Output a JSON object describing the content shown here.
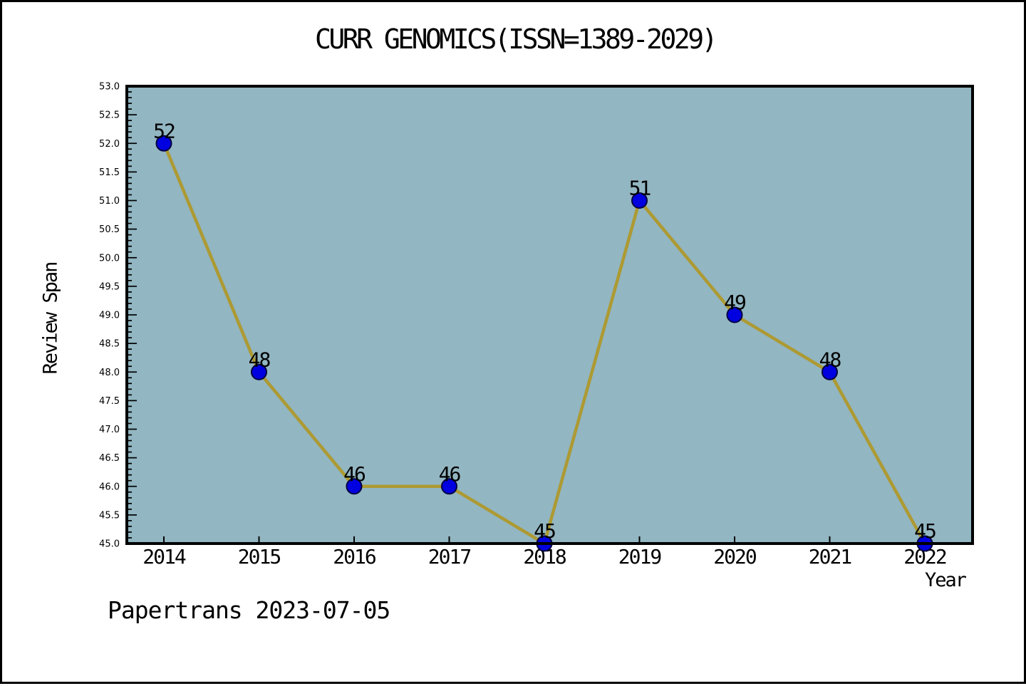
{
  "page": {
    "title": "CURR GENOMICS(ISSN=1389-2029)",
    "footer": "Papertrans 2023-07-05"
  },
  "chart_data": {
    "type": "line",
    "title": "CURR GENOMICS(ISSN=1389-2029)",
    "xlabel": "Year",
    "ylabel": "Review Span",
    "categories": [
      "2014",
      "2015",
      "2016",
      "2017",
      "2018",
      "2019",
      "2020",
      "2021",
      "2022"
    ],
    "values": [
      52,
      48,
      46,
      46,
      45,
      51,
      49,
      48,
      45
    ],
    "point_labels": [
      "52",
      "48",
      "46",
      "46",
      "45",
      "51",
      "49",
      "48",
      "45"
    ],
    "ylim": [
      45.0,
      53.0
    ],
    "y_major_step": 0.5,
    "y_minor_step": 0.1,
    "y_tick_labels": [
      "45.0",
      "45.5",
      "46.0",
      "46.5",
      "47.0",
      "47.5",
      "48.0",
      "48.5",
      "49.0",
      "49.5",
      "50.0",
      "50.5",
      "51.0",
      "51.5",
      "52.0",
      "52.5",
      "53.0"
    ],
    "grid": false,
    "legend": "none",
    "colors": {
      "plot_background": "#92b6c2",
      "line": "#ad9a33",
      "marker_fill": "#0000e0",
      "marker_edge": "#000040",
      "axis": "#000000",
      "text": "#000000"
    }
  }
}
